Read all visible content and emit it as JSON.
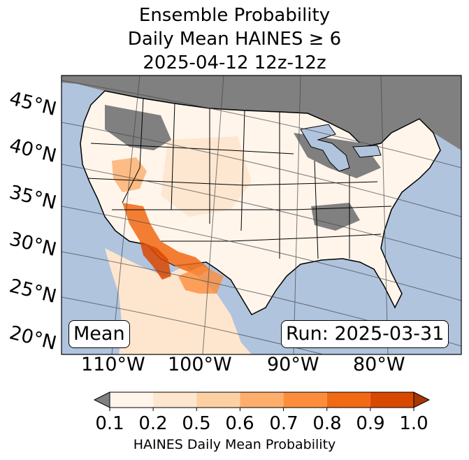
{
  "title": {
    "line1": "Ensemble Probability",
    "line2": "Daily Mean HAINES ≥ 6",
    "line3": "2025-04-12 12z-12z"
  },
  "map": {
    "latitude_labels": [
      "45°N",
      "40°N",
      "35°N",
      "30°N",
      "25°N",
      "20°N"
    ],
    "longitude_labels": [
      "110°W",
      "100°W",
      "90°W",
      "80°W"
    ],
    "stat_box": "Mean",
    "run_box": "Run: 2025-03-31",
    "colors": {
      "ocean": "#b0c4de",
      "missing": "#808080",
      "land_low": "#fff5eb"
    }
  },
  "colorbar": {
    "label": "HAINES Daily Mean Probability",
    "ticks": [
      "0.1",
      "0.2",
      "0.5",
      "0.6",
      "0.7",
      "0.8",
      "0.9",
      "1.0"
    ],
    "under_color": "#808080",
    "colors": [
      "#fff5eb",
      "#fee6ce",
      "#fdd0a2",
      "#fdae6b",
      "#fd8d3c",
      "#f16913",
      "#d94801",
      "#a63603"
    ],
    "extend": "both"
  }
}
